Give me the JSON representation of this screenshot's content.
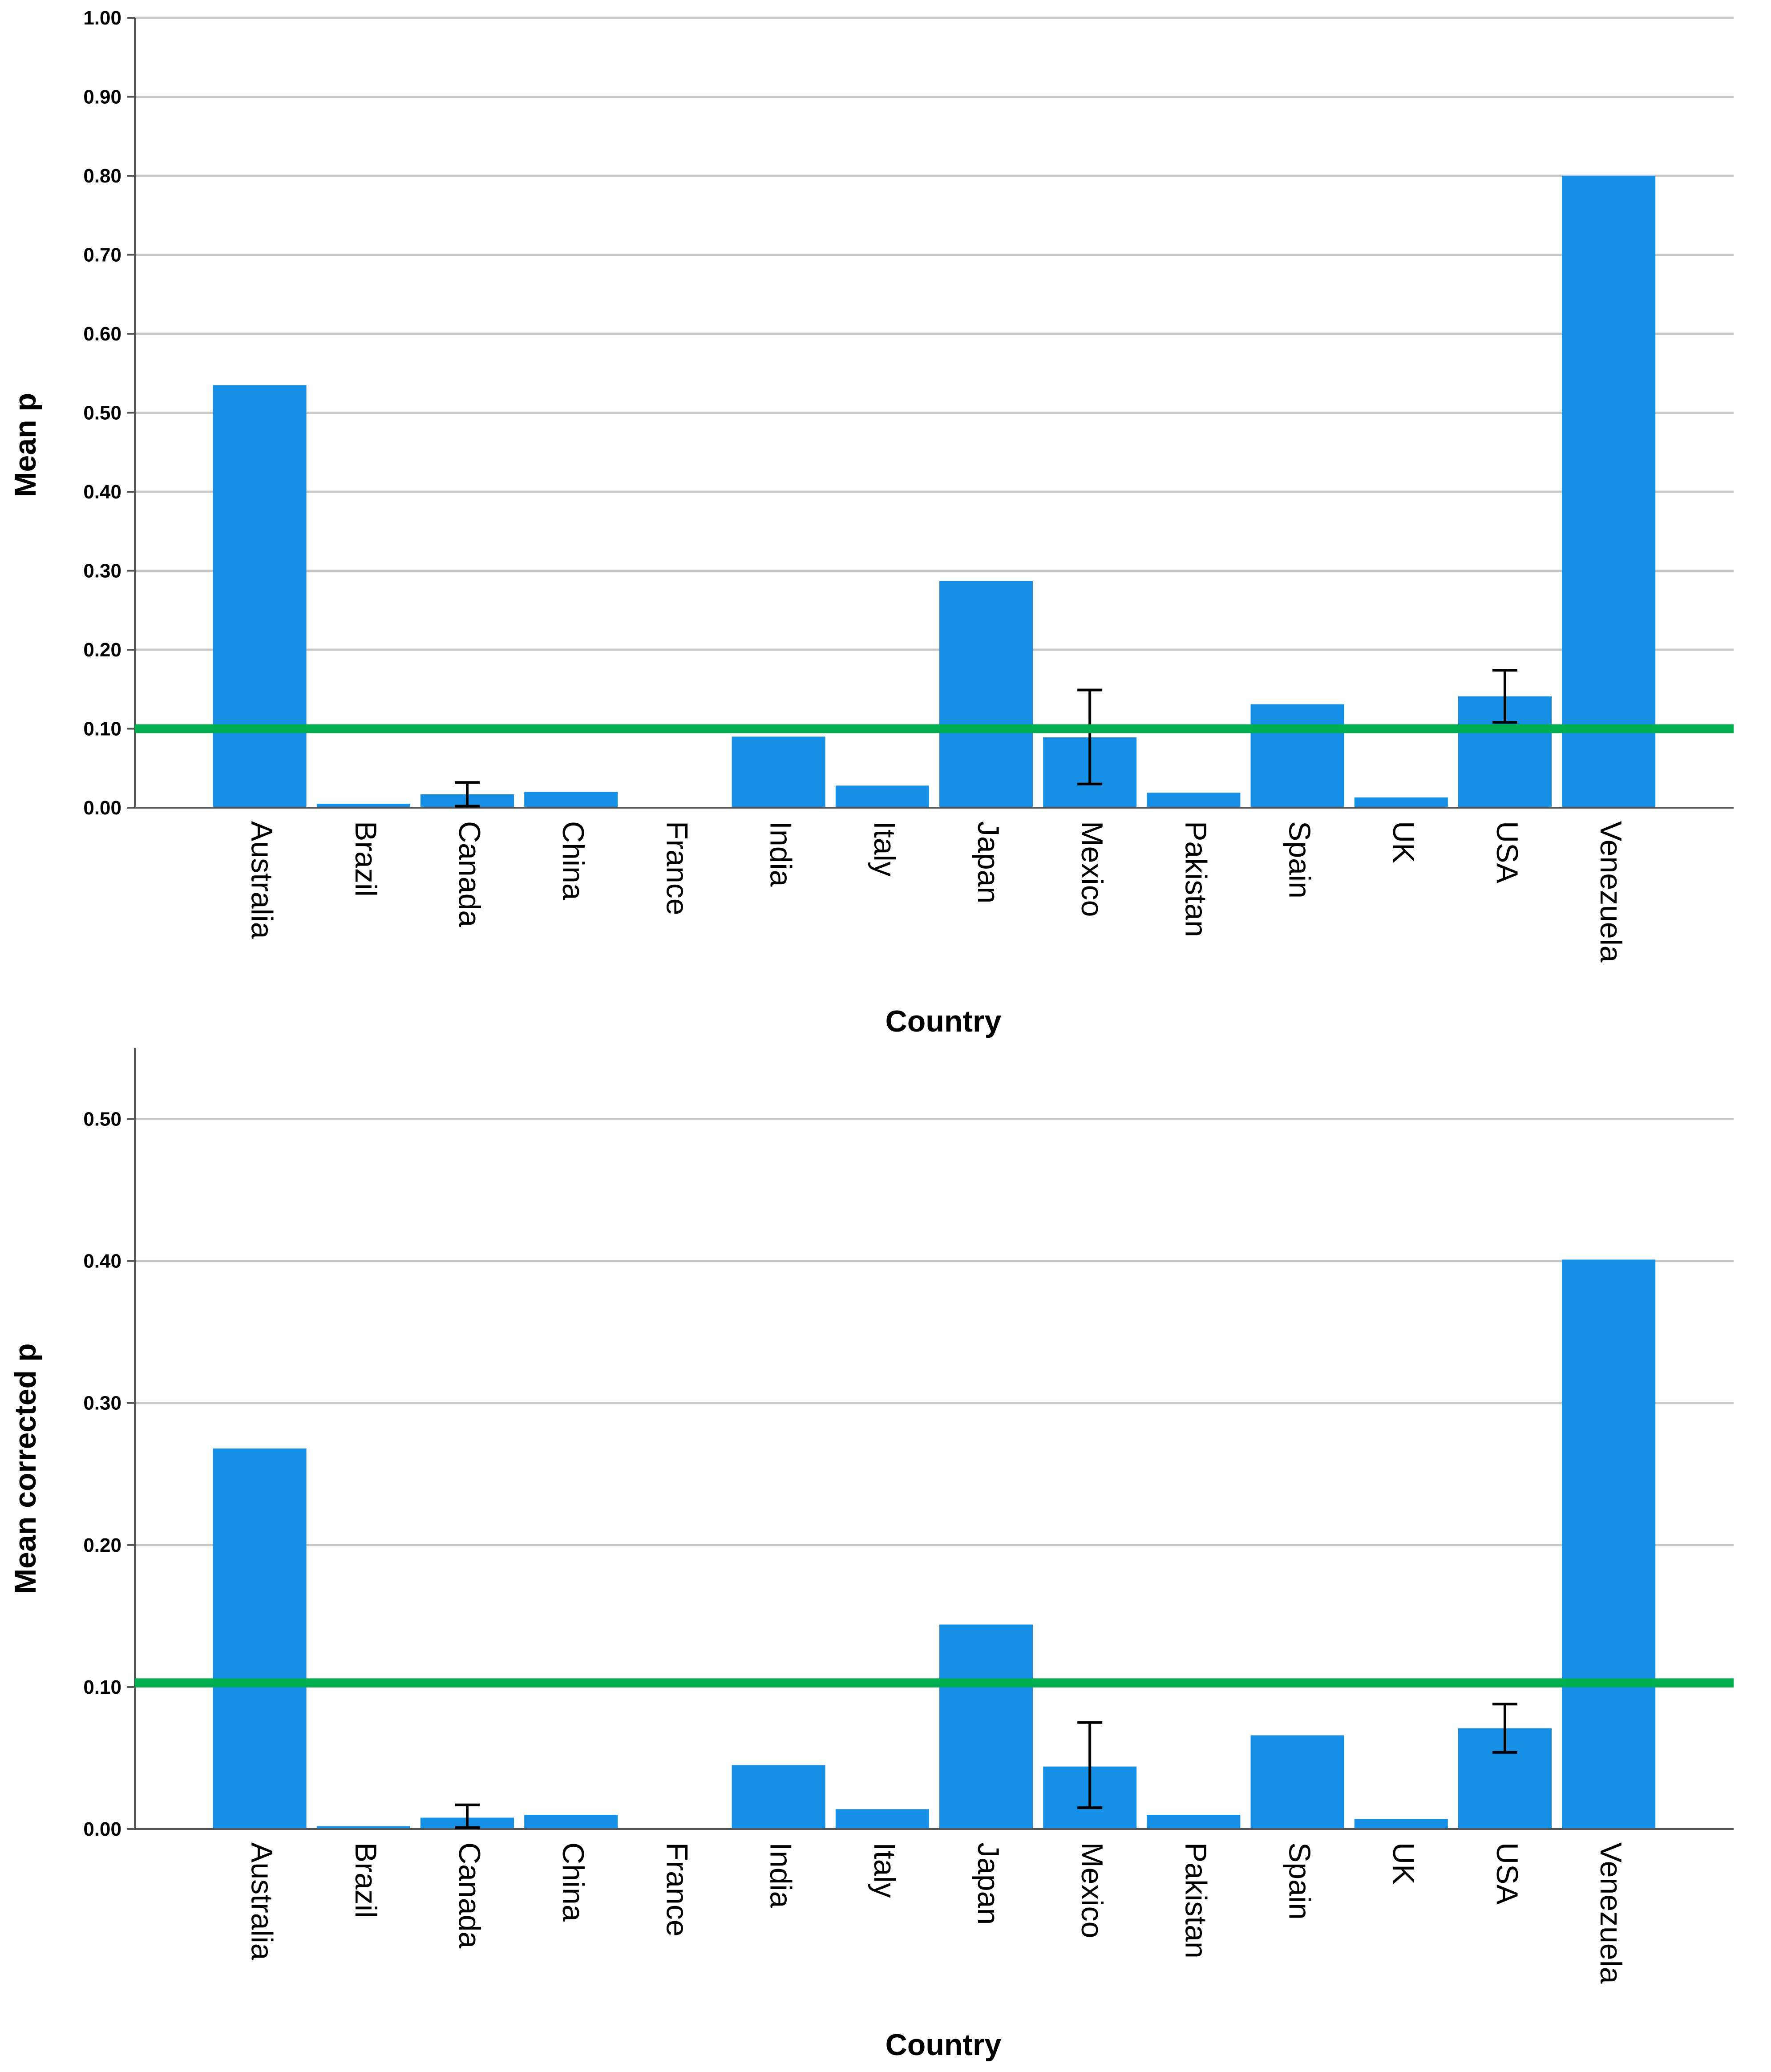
{
  "chart_data": [
    {
      "type": "bar",
      "title": "",
      "xlabel": "Country",
      "ylabel": "Mean p",
      "ylim": [
        0,
        1.0
      ],
      "yticks": [
        0.0,
        0.1,
        0.2,
        0.3,
        0.4,
        0.5,
        0.6,
        0.7,
        0.8,
        0.9,
        1.0
      ],
      "ytick_labels": [
        "0.00",
        "0.10",
        "0.20",
        "0.30",
        "0.40",
        "0.50",
        "0.60",
        "0.70",
        "0.80",
        "0.90",
        "1.00"
      ],
      "grid": true,
      "categories": [
        "Australia",
        "Brazil",
        "Canada",
        "China",
        "France",
        "India",
        "Italy",
        "Japan",
        "Mexico",
        "Pakistan",
        "Spain",
        "UK",
        "USA",
        "Venezuela"
      ],
      "values": [
        0.535,
        0.005,
        0.017,
        0.02,
        0.0,
        0.09,
        0.028,
        0.287,
        0.089,
        0.019,
        0.131,
        0.013,
        0.141,
        0.8
      ],
      "error_bars": [
        {
          "category": "Canada",
          "low": 0.002,
          "high": 0.032
        },
        {
          "category": "Mexico",
          "low": 0.03,
          "high": 0.149
        },
        {
          "category": "USA",
          "low": 0.108,
          "high": 0.174
        }
      ],
      "reference_line": {
        "y": 0.1,
        "color": "#00b050"
      },
      "bar_color": "#1590e6"
    },
    {
      "type": "bar",
      "title": "",
      "xlabel": "Country",
      "ylabel": "Mean corrected p",
      "ylim": [
        0,
        0.55
      ],
      "yticks": [
        0.0,
        0.1,
        0.2,
        0.3,
        0.4,
        0.5
      ],
      "ytick_labels": [
        "0.00",
        "0.10",
        "0.20",
        "0.30",
        "0.40",
        "0.50"
      ],
      "grid": true,
      "categories": [
        "Australia",
        "Brazil",
        "Canada",
        "China",
        "France",
        "India",
        "Italy",
        "Japan",
        "Mexico",
        "Pakistan",
        "Spain",
        "UK",
        "USA",
        "Venezuela"
      ],
      "values": [
        0.268,
        0.002,
        0.008,
        0.01,
        0.0,
        0.045,
        0.014,
        0.144,
        0.044,
        0.01,
        0.066,
        0.007,
        0.071,
        0.401
      ],
      "error_bars": [
        {
          "category": "Canada",
          "low": 0.001,
          "high": 0.017
        },
        {
          "category": "Mexico",
          "low": 0.015,
          "high": 0.075
        },
        {
          "category": "USA",
          "low": 0.054,
          "high": 0.088
        }
      ],
      "reference_line": {
        "y": 0.103,
        "color": "#00b050"
      },
      "bar_color": "#1590e6"
    }
  ]
}
